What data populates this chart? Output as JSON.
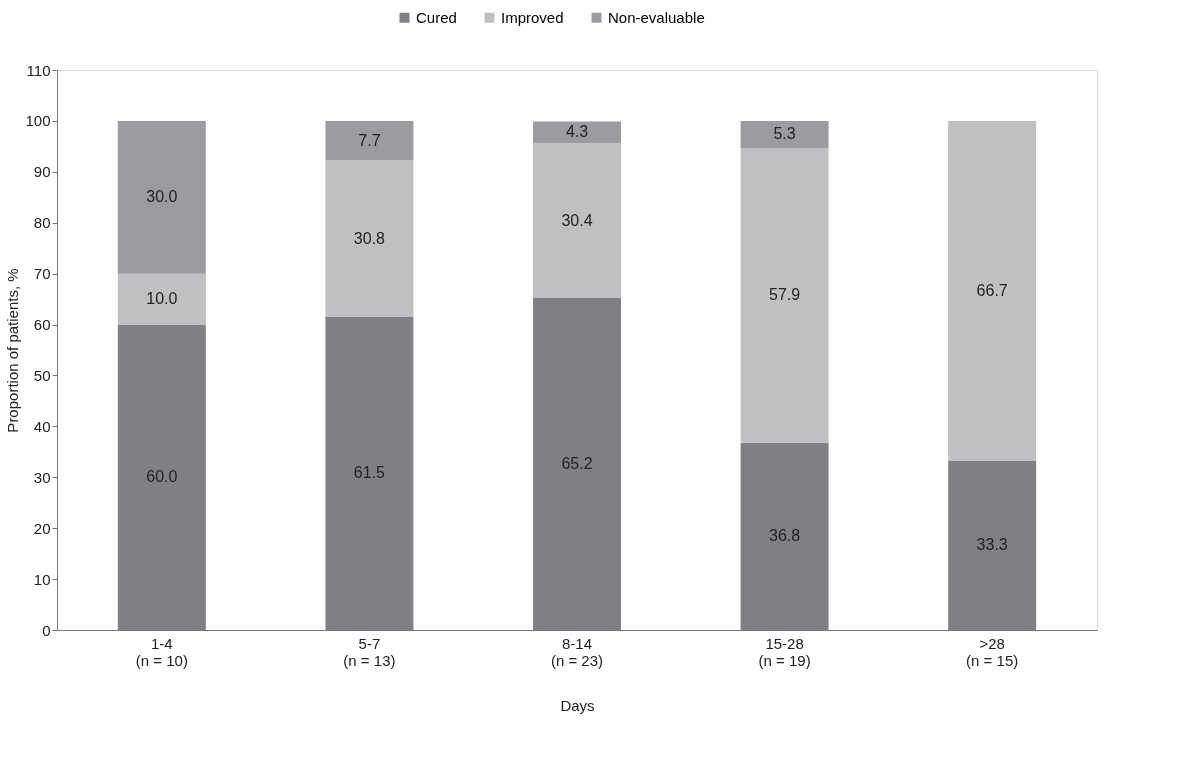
{
  "chart_data": {
    "type": "bar",
    "stacked": true,
    "xlabel": "Days",
    "ylabel": "Proportion of patients, %",
    "categories": [
      "1-4\n(n = 10)",
      "5-7\n(n = 13)",
      "8-14\n(n = 23)",
      "15-28\n(n = 19)",
      ">28\n(n = 15)"
    ],
    "series": [
      {
        "name": "Cured",
        "color": "#7f8083",
        "values": [
          60.0,
          61.5,
          65.2,
          36.8,
          33.3
        ],
        "value_labels": [
          "60.0",
          "61.5",
          "65.2",
          "36.8",
          "33.3"
        ]
      },
      {
        "name": "Improved",
        "color": "#bfc0c2",
        "values": [
          10.0,
          30.8,
          30.4,
          57.9,
          66.7
        ],
        "value_labels": [
          "10.0",
          "30.8",
          "30.4",
          "57.9",
          "66.7"
        ]
      },
      {
        "name": "Non-evaluable",
        "color": "#9b9c9f",
        "values": [
          30.0,
          7.7,
          4.3,
          5.3,
          null
        ],
        "value_labels": [
          "30.0",
          "7.7",
          "4.3",
          "5.3",
          null
        ]
      }
    ],
    "ylim": [
      0,
      110
    ],
    "yticks": [
      0,
      10,
      20,
      30,
      40,
      50,
      60,
      70,
      80,
      90,
      100,
      110
    ],
    "grid": false,
    "legend": "top"
  }
}
